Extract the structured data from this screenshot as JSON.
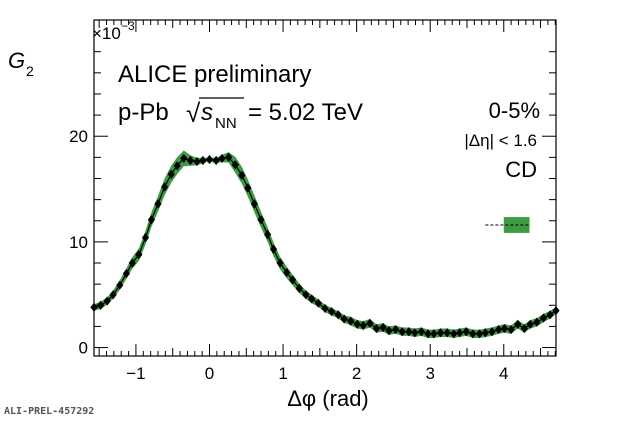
{
  "chart_data": {
    "type": "scatter",
    "title": "",
    "xlabel": "Δφ (rad)",
    "ylabel": "G",
    "ylabel_sub": "2",
    "y_multiplier": "×10",
    "y_multiplier_exp": "−3",
    "xlim": [
      -1.57,
      4.71
    ],
    "ylim": [
      -0.8,
      31
    ],
    "x_ticks": [
      -1,
      0,
      1,
      2,
      3,
      4
    ],
    "x_tick_labels": [
      "−1",
      "0",
      "1",
      "2",
      "3",
      "4"
    ],
    "y_ticks": [
      0,
      10,
      20
    ],
    "y_tick_labels": [
      "0",
      "10",
      "20"
    ],
    "grid": false,
    "annotations": {
      "experiment": "ALICE preliminary",
      "system": "p-Pb",
      "sqrt": "√",
      "s_symbol": "s",
      "s_subscript": "NN",
      "energy": "= 5.02 TeV",
      "centrality": "0-5%",
      "eta_cut": "|Δη| < 1.6",
      "observable": "CD"
    },
    "scale_uncertainty_box": {
      "x": [
        4.0,
        4.35
      ],
      "y_center": 11.6,
      "half_height": 0.75,
      "dash_x_start": 3.75
    },
    "series": [
      {
        "x": [
          -1.57,
          -1.48,
          -1.39,
          -1.31,
          -1.22,
          -1.13,
          -1.05,
          -0.96,
          -0.87,
          -0.79,
          -0.7,
          -0.61,
          -0.52,
          -0.44,
          -0.35,
          -0.26,
          -0.17,
          -0.09,
          0.0,
          0.09,
          0.17,
          0.26,
          0.35,
          0.44,
          0.52,
          0.61,
          0.7,
          0.79,
          0.87,
          0.96,
          1.05,
          1.13,
          1.22,
          1.31,
          1.39,
          1.48,
          1.57,
          1.66,
          1.75,
          1.83,
          1.92,
          2.01,
          2.09,
          2.18,
          2.27,
          2.36,
          2.44,
          2.53,
          2.62,
          2.71,
          2.79,
          2.88,
          2.97,
          3.05,
          3.14,
          3.23,
          3.32,
          3.4,
          3.49,
          3.58,
          3.67,
          3.75,
          3.84,
          3.93,
          4.01,
          4.1,
          4.19,
          4.28,
          4.36,
          4.45,
          4.54,
          4.63,
          4.71
        ],
        "y": [
          3.8,
          4.0,
          4.4,
          5.0,
          5.9,
          7.0,
          8.0,
          8.8,
          10.4,
          12.1,
          13.6,
          15.2,
          16.4,
          17.2,
          17.9,
          17.7,
          17.6,
          17.7,
          17.8,
          17.7,
          17.9,
          18.0,
          17.3,
          16.3,
          15.1,
          13.6,
          12.1,
          10.7,
          9.3,
          8.0,
          7.1,
          6.4,
          5.6,
          5.0,
          4.6,
          4.2,
          3.7,
          3.4,
          3.1,
          2.7,
          2.5,
          2.2,
          2.1,
          2.3,
          1.8,
          1.9,
          1.6,
          1.7,
          1.5,
          1.5,
          1.4,
          1.5,
          1.3,
          1.3,
          1.4,
          1.4,
          1.3,
          1.4,
          1.5,
          1.3,
          1.3,
          1.4,
          1.5,
          1.7,
          1.8,
          1.7,
          2.2,
          1.8,
          2.2,
          2.4,
          2.8,
          3.1,
          3.5
        ],
        "sys": [
          0.3,
          0.35,
          0.35,
          0.4,
          0.45,
          0.5,
          0.55,
          0.6,
          0.65,
          0.7,
          0.75,
          0.8,
          0.8,
          0.8,
          0.75,
          0.5,
          0.35,
          0.25,
          0.2,
          0.25,
          0.35,
          0.5,
          0.75,
          0.8,
          0.8,
          0.8,
          0.75,
          0.7,
          0.65,
          0.6,
          0.55,
          0.5,
          0.45,
          0.4,
          0.4,
          0.35,
          0.35,
          0.35,
          0.35,
          0.35,
          0.4,
          0.4,
          0.4,
          0.4,
          0.4,
          0.4,
          0.4,
          0.4,
          0.4,
          0.4,
          0.4,
          0.4,
          0.4,
          0.4,
          0.4,
          0.4,
          0.4,
          0.4,
          0.4,
          0.4,
          0.4,
          0.4,
          0.4,
          0.4,
          0.4,
          0.4,
          0.4,
          0.4,
          0.4,
          0.4,
          0.4,
          0.35,
          0.35
        ]
      }
    ],
    "colors": {
      "band": "#3f9a44",
      "marker": "#000000",
      "axis": "#000000"
    }
  },
  "footer": {
    "label": "ALI-PREL-457292"
  }
}
